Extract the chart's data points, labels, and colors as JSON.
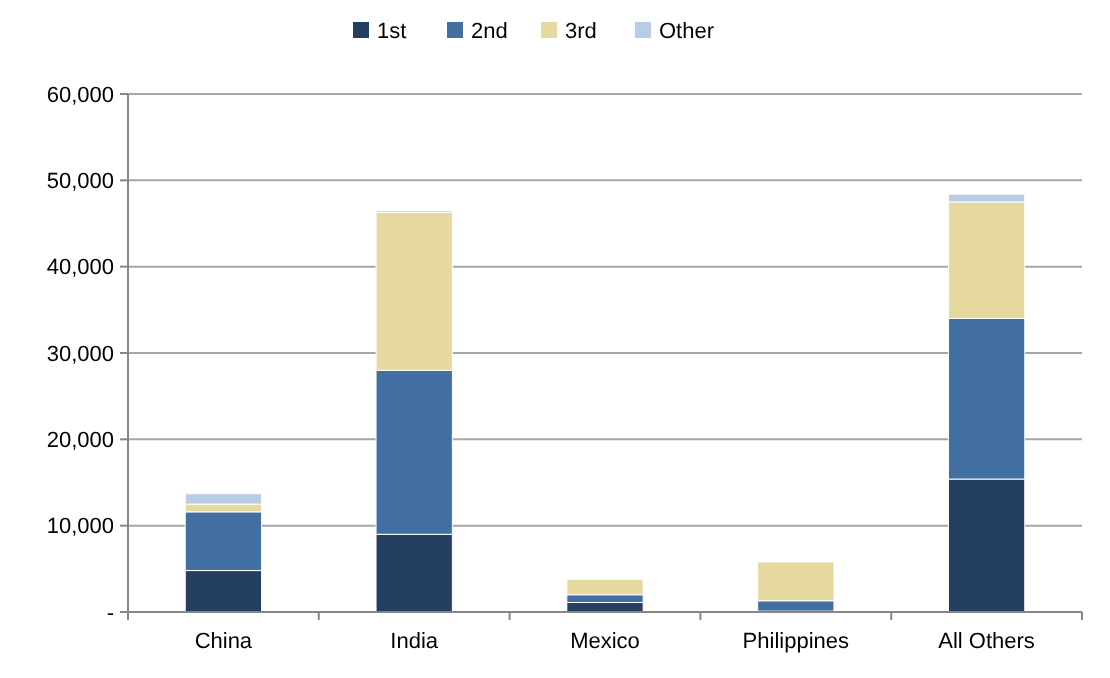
{
  "chart_data": {
    "type": "bar",
    "stacked": true,
    "categories": [
      "China",
      "India",
      "Mexico",
      "Philippines",
      "All Others"
    ],
    "series": [
      {
        "name": "1st",
        "color": "#253f60",
        "values": [
          4800,
          9000,
          1100,
          100,
          15400
        ]
      },
      {
        "name": "2nd",
        "color": "#426fa1",
        "values": [
          6800,
          19000,
          900,
          1200,
          18600
        ]
      },
      {
        "name": "3rd",
        "color": "#e5d9a0",
        "values": [
          900,
          18300,
          1800,
          4500,
          13500
        ]
      },
      {
        "name": "Other",
        "color": "#b8cce4",
        "values": [
          1200,
          200,
          null,
          null,
          900
        ]
      }
    ],
    "ylim": [
      0,
      60000
    ],
    "yticks": [
      {
        "value": 0,
        "label": "-"
      },
      {
        "value": 10000,
        "label": "10,000"
      },
      {
        "value": 20000,
        "label": "20,000"
      },
      {
        "value": 30000,
        "label": "30,000"
      },
      {
        "value": 40000,
        "label": "40,000"
      },
      {
        "value": 50000,
        "label": "50,000"
      },
      {
        "value": 60000,
        "label": "60,000"
      }
    ],
    "grid": "y",
    "legend": "top"
  }
}
